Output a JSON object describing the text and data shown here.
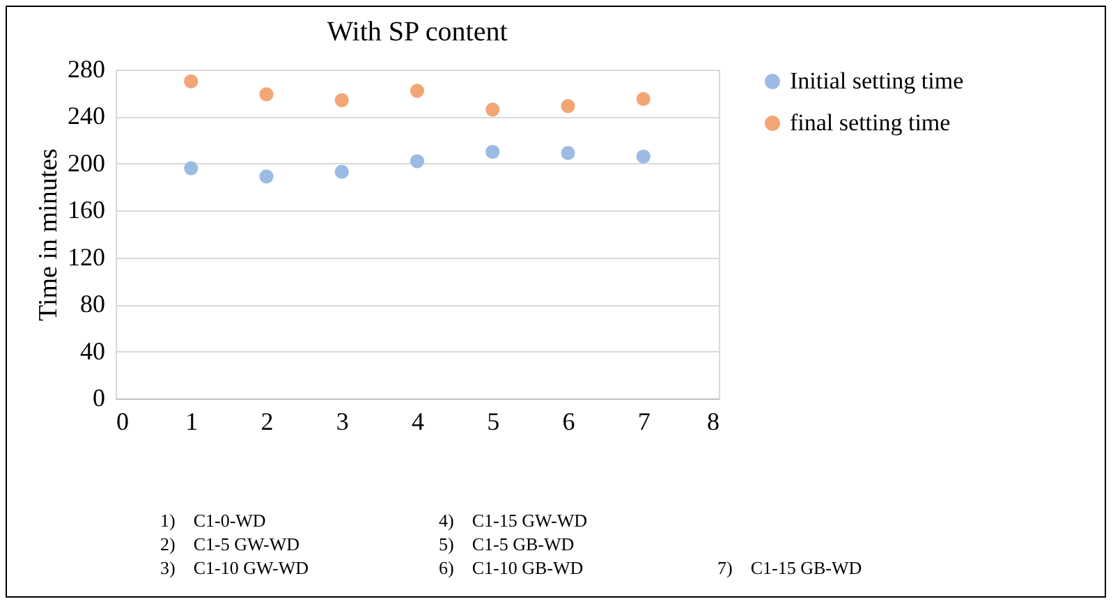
{
  "chart_data": {
    "type": "scatter",
    "title": "With SP content",
    "ylabel": "Time in minutes",
    "x": [
      1,
      2,
      3,
      4,
      5,
      6,
      7
    ],
    "series": [
      {
        "name": "Initial setting time",
        "color": "#9bbbe3",
        "values": [
          196,
          189,
          193,
          202,
          210,
          209,
          206
        ]
      },
      {
        "name": "final setting time",
        "color": "#f2a675",
        "values": [
          270,
          259,
          254,
          262,
          246,
          249,
          255
        ]
      }
    ],
    "xlim": [
      0,
      8
    ],
    "xticks": [
      0,
      1,
      2,
      3,
      4,
      5,
      6,
      7,
      8
    ],
    "ylim": [
      0,
      280
    ],
    "yticks": [
      0,
      40,
      80,
      120,
      160,
      200,
      240,
      280
    ],
    "grid": "y",
    "legend": "right",
    "marker": "circle",
    "annotations": [
      "1) C1-0-WD",
      "2) C1-5 GW-WD",
      "3) C1-10 GW-WD",
      "4) C1-15 GW-WD",
      "5) C1-5 GB-WD",
      "6) C1-10 GB-WD",
      "7) C1-15 GB-WD"
    ]
  }
}
